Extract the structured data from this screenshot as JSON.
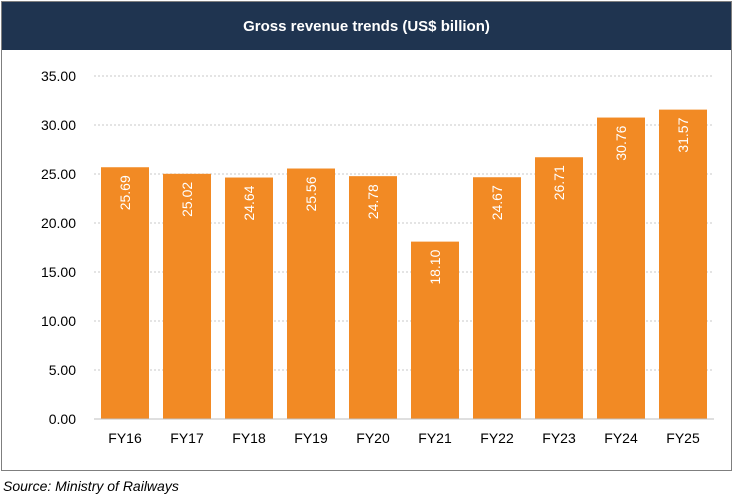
{
  "colors": {
    "bar": "#f28a24",
    "title_bg": "#1f3450",
    "grid": "#c9c9c9"
  },
  "chart_data": {
    "type": "bar",
    "title": "Gross revenue trends (US$ billion)",
    "categories": [
      "FY16",
      "FY17",
      "FY18",
      "FY19",
      "FY20",
      "FY21",
      "FY22",
      "FY23",
      "FY24",
      "FY25"
    ],
    "values": [
      25.69,
      25.02,
      24.64,
      25.56,
      24.78,
      18.1,
      24.67,
      26.71,
      30.76,
      31.57
    ],
    "value_labels": [
      "25.69",
      "25.02",
      "24.64",
      "25.56",
      "24.78",
      "18.10",
      "24.67",
      "26.71",
      "30.76",
      "31.57"
    ],
    "ylim": [
      0,
      35
    ],
    "yticks": [
      "0.00",
      "5.00",
      "10.00",
      "15.00",
      "20.00",
      "25.00",
      "30.00",
      "35.00"
    ],
    "grid": true,
    "legend": "none"
  },
  "source": "Source: Ministry of Railways"
}
